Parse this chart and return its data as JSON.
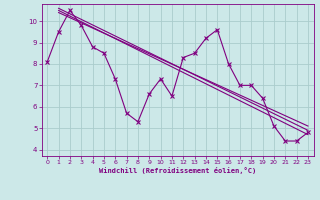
{
  "xlabel": "Windchill (Refroidissement éolien,°C)",
  "background_color": "#cce8e8",
  "line_color": "#800080",
  "grid_color": "#aacccc",
  "xlim": [
    -0.5,
    23.5
  ],
  "ylim": [
    3.7,
    10.8
  ],
  "yticks": [
    4,
    5,
    6,
    7,
    8,
    9,
    10
  ],
  "xticks": [
    0,
    1,
    2,
    3,
    4,
    5,
    6,
    7,
    8,
    9,
    10,
    11,
    12,
    13,
    14,
    15,
    16,
    17,
    18,
    19,
    20,
    21,
    22,
    23
  ],
  "main_x": [
    0,
    1,
    2,
    3,
    4,
    5,
    6,
    7,
    8,
    9,
    10,
    11,
    12,
    13,
    14,
    15,
    16,
    17,
    18,
    19,
    20,
    21,
    22,
    23
  ],
  "main_y": [
    8.1,
    9.5,
    10.5,
    9.8,
    8.8,
    8.5,
    7.3,
    5.7,
    5.3,
    6.6,
    7.3,
    6.5,
    8.3,
    8.5,
    9.2,
    9.6,
    8.0,
    7.0,
    7.0,
    6.4,
    5.1,
    4.4,
    4.4,
    4.8
  ],
  "trend1_x": [
    1,
    23
  ],
  "trend1_y": [
    10.6,
    4.9
  ],
  "trend2_x": [
    1,
    23
  ],
  "trend2_y": [
    10.5,
    4.7
  ],
  "trend3_x": [
    1,
    23
  ],
  "trend3_y": [
    10.4,
    5.1
  ]
}
